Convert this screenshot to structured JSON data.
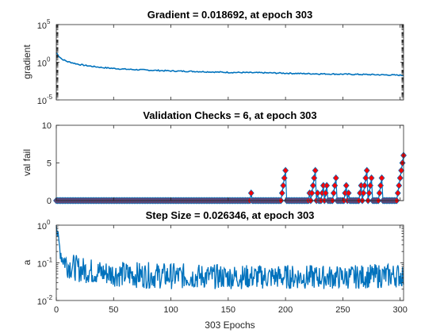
{
  "chart_data": [
    {
      "type": "line",
      "title": "Gradient = 0.018692, at epoch 303",
      "ylabel": "gradient",
      "xlabel": "",
      "yscale": "log",
      "xlim": [
        0,
        303
      ],
      "ylim": [
        1e-05,
        100000.0
      ],
      "yticks": [
        {
          "base": "10",
          "exp": "-5"
        },
        {
          "base": "10",
          "exp": "0"
        },
        {
          "base": "10",
          "exp": "5"
        }
      ],
      "color": "#0072BD",
      "series": [
        {
          "x": [
            0,
            2,
            5,
            10,
            20,
            30,
            40,
            50,
            60,
            80,
            100,
            120,
            150,
            180,
            200,
            220,
            250,
            280,
            303
          ],
          "values": [
            20,
            7,
            2.5,
            1.2,
            0.5,
            0.3,
            0.2,
            0.15,
            0.12,
            0.09,
            0.07,
            0.06,
            0.045,
            0.04,
            0.035,
            0.03,
            0.026,
            0.022,
            0.018692
          ]
        }
      ]
    },
    {
      "type": "line",
      "title": "Validation Checks = 6, at epoch 303",
      "ylabel": "val fail",
      "xlabel": "",
      "xlim": [
        0,
        303
      ],
      "ylim": [
        0,
        10
      ],
      "yticks": [
        0,
        5,
        10
      ],
      "line_color": "#0072BD",
      "marker_face": "#FF0000",
      "marker_edge": "#0072BD",
      "series": [
        {
          "x": [
            0,
            169,
            170,
            171,
            172,
            196,
            197,
            198,
            199,
            200,
            201,
            202,
            220,
            221,
            222,
            223,
            224,
            225,
            226,
            227,
            228,
            229,
            231,
            232,
            233,
            234,
            235,
            236,
            237,
            241,
            242,
            243,
            244,
            245,
            246,
            251,
            252,
            253,
            254,
            255,
            256,
            264,
            265,
            266,
            267,
            268,
            269,
            270,
            271,
            272,
            273,
            274,
            275,
            276,
            277,
            281,
            282,
            283,
            284,
            285,
            286,
            297,
            298,
            299,
            300,
            301,
            302,
            303
          ],
          "values": [
            0,
            0,
            1,
            0,
            0,
            0,
            1,
            2,
            3,
            4,
            0,
            0,
            0,
            1,
            0,
            1,
            2,
            3,
            4,
            0,
            1,
            0,
            0,
            1,
            2,
            0,
            1,
            2,
            0,
            0,
            1,
            2,
            3,
            0,
            0,
            0,
            1,
            2,
            0,
            1,
            0,
            0,
            1,
            2,
            0,
            1,
            2,
            3,
            4,
            0,
            1,
            2,
            3,
            0,
            0,
            0,
            1,
            2,
            3,
            0,
            0,
            0,
            1,
            2,
            3,
            4,
            5,
            6
          ]
        }
      ]
    },
    {
      "type": "line",
      "title": "Step Size = 0.026346, at epoch 303",
      "ylabel": "a",
      "xlabel": "303 Epochs",
      "yscale": "log",
      "xlim": [
        0,
        303
      ],
      "ylim": [
        0.01,
        1
      ],
      "yticks": [
        {
          "base": "10",
          "exp": "-2"
        },
        {
          "base": "10",
          "exp": "-1"
        },
        {
          "base": "10",
          "exp": "0"
        }
      ],
      "xticks": [
        "0",
        "50",
        "100",
        "150",
        "200",
        "250",
        "300"
      ],
      "color": "#0072BD",
      "series": [
        {
          "x": [
            0,
            1,
            2,
            5,
            10,
            20,
            40,
            60,
            100,
            150,
            200,
            250,
            300,
            303
          ],
          "values": [
            1,
            0.6,
            0.4,
            0.2,
            0.12,
            0.1,
            0.08,
            0.07,
            0.06,
            0.05,
            0.05,
            0.045,
            0.04,
            0.026346
          ],
          "band_low": [
            1,
            0.4,
            0.2,
            0.07,
            0.04,
            0.03,
            0.025,
            0.022,
            0.02,
            0.02,
            0.02,
            0.02,
            0.022,
            0.022
          ],
          "band_high": [
            1,
            0.8,
            0.6,
            0.3,
            0.2,
            0.15,
            0.12,
            0.11,
            0.1,
            0.09,
            0.09,
            0.085,
            0.1,
            0.1
          ]
        }
      ]
    }
  ]
}
